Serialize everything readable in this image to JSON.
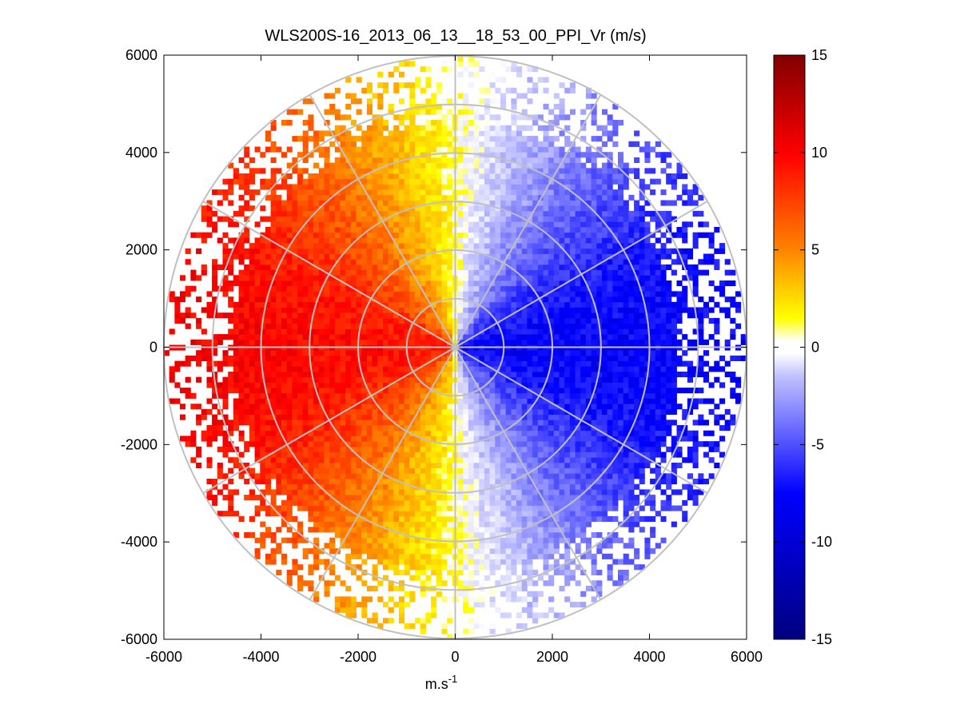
{
  "chart_data": {
    "type": "heatmap",
    "subtype": "polar-ppi-scan",
    "title": "WLS200S-16_2013_06_13__18_53_00_PPI_Vr (m/s)",
    "xlabel": "m.s",
    "xlabel_superscript": "-1",
    "ylabel": "",
    "xlim": [
      -6000,
      6000
    ],
    "ylim": [
      -6000,
      6000
    ],
    "x_ticks": [
      "-6000",
      "-4000",
      "-2000",
      "0",
      "2000",
      "4000",
      "6000"
    ],
    "y_ticks": [
      "6000",
      "4000",
      "2000",
      "0",
      "-2000",
      "-4000",
      "-6000"
    ],
    "x_tick_values": [
      -6000,
      -4000,
      -2000,
      0,
      2000,
      4000,
      6000
    ],
    "y_tick_values": [
      6000,
      4000,
      2000,
      0,
      -2000,
      -4000,
      -6000
    ],
    "range_rings": [
      1000,
      2000,
      3000,
      4000,
      5000,
      6000
    ],
    "max_range": 6000,
    "spoke_angles_deg": [
      0,
      30,
      60,
      90,
      120,
      150,
      180,
      210,
      240,
      270,
      300,
      330
    ],
    "colorbar": {
      "ticks": [
        "15",
        "10",
        "5",
        "0",
        "-5",
        "-10",
        "-15"
      ],
      "tick_values": [
        15,
        10,
        5,
        0,
        -5,
        -10,
        -15
      ],
      "range": [
        -15,
        15
      ]
    },
    "field_summary": {
      "description_values": "radial velocity field; west half positive (toward ~+9 m/s), east half negative (toward ~-10 m/s), near 0 along north-south line",
      "west_max": 9,
      "east_min": -10
    }
  },
  "colors": {
    "ring": "#c0c0c0",
    "axes": "#000000",
    "background": "#ffffff"
  }
}
